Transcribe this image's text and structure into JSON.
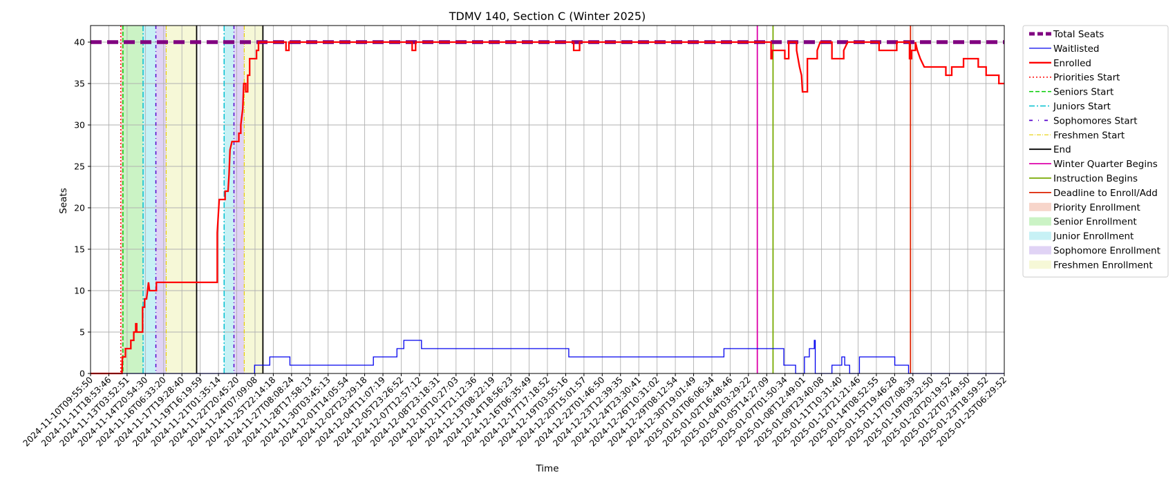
{
  "chart_data": {
    "type": "line",
    "title": "TDMV 140, Section C (Winter 2025)",
    "xlabel": "Time",
    "ylabel": "Seats",
    "x_start": "2024-11-10T09:55:50",
    "x_end": "2025-01-26T23:00:00",
    "ylim": [
      0,
      42
    ],
    "yticks": [
      0,
      5,
      10,
      15,
      20,
      25,
      30,
      35,
      40
    ],
    "grid": true,
    "legend_placement": "outside-right-top",
    "x_tick_labels": [
      "2024-11-10T09:55:50",
      "2024-11-11T18:53:46",
      "2024-11-13T03:52:51",
      "2024-11-14T20:54:30",
      "2024-11-16T06:33:20",
      "2024-11-17T19:28:40",
      "2024-11-19T16:19:59",
      "2024-11-21T01:35:14",
      "2024-11-22T20:45:20",
      "2024-11-24T07:09:08",
      "2024-11-25T22:14:18",
      "2024-11-27T08:08:24",
      "2024-11-28T17:58:13",
      "2024-11-30T03:45:13",
      "2024-12-01T14:05:54",
      "2024-12-02T23:29:18",
      "2024-12-04T11:07:19",
      "2024-12-05T23:26:52",
      "2024-12-07T12:57:12",
      "2024-12-08T23:18:31",
      "2024-12-10T10:27:03",
      "2024-12-11T21:12:36",
      "2024-12-13T08:22:19",
      "2024-12-14T18:56:23",
      "2024-12-16T06:35:49",
      "2024-12-17T17:18:52",
      "2024-12-19T03:55:16",
      "2024-12-20T15:01:57",
      "2024-12-22T01:46:50",
      "2024-12-23T12:39:35",
      "2024-12-24T23:30:41",
      "2024-12-26T10:31:02",
      "2024-12-29T08:12:54",
      "2024-12-30T19:01:49",
      "2025-01-01T06:06:34",
      "2025-01-02T16:48:46",
      "2025-01-04T03:29:22",
      "2025-01-05T14:27:09",
      "2025-01-07T01:50:34",
      "2025-01-08T12:49:01",
      "2025-01-09T23:40:08",
      "2025-01-11T10:31:40",
      "2025-01-12T21:21:46",
      "2025-01-14T08:52:55",
      "2025-01-15T19:46:28",
      "2025-01-17T07:08:39",
      "2025-01-19T09:32:50",
      "2025-01-20T20:19:52",
      "2025-01-22T07:49:50",
      "2025-01-23T18:59:52",
      "2025-01-25T06:29:52"
    ],
    "shaded_regions": [
      {
        "name": "Priority Enrollment",
        "color": "#f4c7b8",
        "start": "2024-11-12T23:30:00",
        "end": "2024-11-13T03:52:51"
      },
      {
        "name": "Senior Enrollment",
        "color": "#b9efb2",
        "start": "2024-11-13T03:52:51",
        "end": "2024-11-14T20:54:30"
      },
      {
        "name": "Junior Enrollment",
        "color": "#b4ecf2",
        "start": "2024-11-14T20:54:30",
        "end": "2024-11-15T23:00:00"
      },
      {
        "name": "Sophomore Enrollment",
        "color": "#d5c4f2",
        "start": "2024-11-15T23:00:00",
        "end": "2024-11-16T20:00:00"
      },
      {
        "name": "Freshmen Enrollment",
        "color": "#f3f5c9",
        "start": "2024-11-16T20:00:00",
        "end": "2024-11-19T10:00:00"
      },
      {
        "name": "Junior Enrollment",
        "color": "#b4ecf2",
        "start": "2024-11-21T18:00:00",
        "end": "2024-11-22T14:00:00"
      },
      {
        "name": "Sophomore Enrollment",
        "color": "#d5c4f2",
        "start": "2024-11-22T14:00:00",
        "end": "2024-11-23T11:00:00"
      },
      {
        "name": "Freshmen Enrollment",
        "color": "#f3f5c9",
        "start": "2024-11-23T11:00:00",
        "end": "2024-11-25T01:00:00"
      }
    ],
    "vertical_lines": [
      {
        "name": "Priorities Start",
        "color": "#ff0000",
        "dash": "2,3",
        "width": 1.5,
        "x": "2024-11-12T23:30:00"
      },
      {
        "name": "Seniors Start",
        "color": "#00cc00",
        "dash": "6,3",
        "width": 1.5,
        "x": "2024-11-13T03:52:51"
      },
      {
        "name": "Juniors Start",
        "color": "#00bfd0",
        "dash": "8,3,2,3",
        "width": 1.5,
        "x": "2024-11-14T20:54:30"
      },
      {
        "name": "Juniors Start",
        "color": "#00bfd0",
        "dash": "8,3,2,3",
        "width": 1.5,
        "x": "2024-11-21T18:00:00"
      },
      {
        "name": "Sophomores Start",
        "color": "#5500cc",
        "dash": "5,4,1,4",
        "width": 1.5,
        "x": "2024-11-15T23:00:00"
      },
      {
        "name": "Sophomores Start",
        "color": "#5500cc",
        "dash": "5,4,1,4",
        "width": 1.5,
        "x": "2024-11-22T14:00:00"
      },
      {
        "name": "Freshmen Start",
        "color": "#e8d000",
        "dash": "6,2,1,2",
        "width": 1.2,
        "x": "2024-11-16T20:00:00"
      },
      {
        "name": "Freshmen Start",
        "color": "#e8d000",
        "dash": "6,2,1,2",
        "width": 1.2,
        "x": "2024-11-23T11:00:00"
      },
      {
        "name": "End",
        "color": "#000000",
        "dash": "",
        "width": 1.8,
        "x": "2024-11-19T10:00:00"
      },
      {
        "name": "End",
        "color": "#000000",
        "dash": "",
        "width": 1.8,
        "x": "2024-11-25T01:00:00"
      },
      {
        "name": "Winter Quarter Begins",
        "color": "#dd00aa",
        "dash": "",
        "width": 1.8,
        "x": "2025-01-06T00:00:00"
      },
      {
        "name": "Instruction Begins",
        "color": "#77aa00",
        "dash": "",
        "width": 1.8,
        "x": "2025-01-07T08:00:00"
      },
      {
        "name": "Deadline to Enroll/Add",
        "color": "#dd2200",
        "dash": "",
        "width": 1.8,
        "x": "2025-01-19T00:00:00"
      }
    ],
    "series": [
      {
        "name": "Total Seats",
        "color": "#800080",
        "dash": "16,8",
        "width": 5.5,
        "points": [
          [
            "2024-11-10T09:55:50",
            40
          ],
          [
            "2025-01-26T23:00:00",
            40
          ]
        ]
      },
      {
        "name": "Waitlisted",
        "color": "#0000ee",
        "dash": "",
        "width": 1.3,
        "points": [
          [
            "2024-11-10T09:55:50",
            0
          ],
          [
            "2024-11-24T08:00:00",
            0
          ],
          [
            "2024-11-24T08:00:00",
            1
          ],
          [
            "2024-11-25T15:00:00",
            1
          ],
          [
            "2024-11-25T15:00:00",
            2
          ],
          [
            "2024-11-27T08:00:00",
            2
          ],
          [
            "2024-11-27T08:00:00",
            1
          ],
          [
            "2024-12-04T10:00:00",
            1
          ],
          [
            "2024-12-04T10:00:00",
            2
          ],
          [
            "2024-12-06T10:00:00",
            2
          ],
          [
            "2024-12-06T10:00:00",
            3
          ],
          [
            "2024-12-07T00:00:00",
            3
          ],
          [
            "2024-12-07T00:00:00",
            4
          ],
          [
            "2024-12-08T12:00:00",
            4
          ],
          [
            "2024-12-08T12:00:00",
            3
          ],
          [
            "2024-12-21T00:00:00",
            3
          ],
          [
            "2024-12-21T00:00:00",
            2
          ],
          [
            "2025-01-03T04:00:00",
            2
          ],
          [
            "2025-01-03T04:00:00",
            3
          ],
          [
            "2025-01-08T06:00:00",
            3
          ],
          [
            "2025-01-08T06:00:00",
            1
          ],
          [
            "2025-01-09T06:00:00",
            1
          ],
          [
            "2025-01-09T06:00:00",
            0
          ],
          [
            "2025-01-10T00:00:00",
            0
          ],
          [
            "2025-01-10T00:00:00",
            2
          ],
          [
            "2025-01-10T10:00:00",
            2
          ],
          [
            "2025-01-10T10:00:00",
            3
          ],
          [
            "2025-01-10T20:00:00",
            3
          ],
          [
            "2025-01-10T20:00:00",
            4
          ],
          [
            "2025-01-10T22:00:00",
            4
          ],
          [
            "2025-01-10T22:00:00",
            0
          ],
          [
            "2025-01-12T08:00:00",
            0
          ],
          [
            "2025-01-12T08:00:00",
            1
          ],
          [
            "2025-01-13T04:00:00",
            1
          ],
          [
            "2025-01-13T04:00:00",
            2
          ],
          [
            "2025-01-13T10:00:00",
            2
          ],
          [
            "2025-01-13T10:00:00",
            1
          ],
          [
            "2025-01-13T20:00:00",
            1
          ],
          [
            "2025-01-13T20:00:00",
            0
          ],
          [
            "2025-01-14T16:00:00",
            0
          ],
          [
            "2025-01-14T16:00:00",
            2
          ],
          [
            "2025-01-17T16:00:00",
            2
          ],
          [
            "2025-01-17T16:00:00",
            1
          ],
          [
            "2025-01-18T20:00:00",
            1
          ],
          [
            "2025-01-18T20:00:00",
            0
          ],
          [
            "2025-01-26T23:00:00",
            0
          ]
        ]
      },
      {
        "name": "Enrolled",
        "color": "#ff0000",
        "dash": "",
        "width": 2.3,
        "points": [
          [
            "2024-11-10T09:55:50",
            0
          ],
          [
            "2024-11-13T02:00:00",
            0
          ],
          [
            "2024-11-13T03:00:00",
            2
          ],
          [
            "2024-11-13T09:00:00",
            2
          ],
          [
            "2024-11-13T09:00:00",
            3
          ],
          [
            "2024-11-13T20:00:00",
            3
          ],
          [
            "2024-11-13T20:00:00",
            4
          ],
          [
            "2024-11-14T02:00:00",
            4
          ],
          [
            "2024-11-14T02:00:00",
            5
          ],
          [
            "2024-11-14T06:00:00",
            5
          ],
          [
            "2024-11-14T06:00:00",
            6
          ],
          [
            "2024-11-14T08:00:00",
            6
          ],
          [
            "2024-11-14T08:00:00",
            5
          ],
          [
            "2024-11-14T20:00:00",
            5
          ],
          [
            "2024-11-14T20:00:00",
            8
          ],
          [
            "2024-11-15T00:00:00",
            8
          ],
          [
            "2024-11-15T00:00:00",
            9
          ],
          [
            "2024-11-15T04:00:00",
            9
          ],
          [
            "2024-11-15T06:00:00",
            10
          ],
          [
            "2024-11-15T08:00:00",
            11
          ],
          [
            "2024-11-15T10:00:00",
            10
          ],
          [
            "2024-11-16T00:00:00",
            10
          ],
          [
            "2024-11-16T00:00:00",
            11
          ],
          [
            "2024-11-21T04:00:00",
            11
          ],
          [
            "2024-11-21T04:00:00",
            17
          ],
          [
            "2024-11-21T06:00:00",
            19
          ],
          [
            "2024-11-21T08:00:00",
            21
          ],
          [
            "2024-11-21T20:00:00",
            21
          ],
          [
            "2024-11-21T20:00:00",
            22
          ],
          [
            "2024-11-22T02:00:00",
            22
          ],
          [
            "2024-11-22T04:00:00",
            24
          ],
          [
            "2024-11-22T06:00:00",
            27
          ],
          [
            "2024-11-22T10:00:00",
            28
          ],
          [
            "2024-11-23T00:00:00",
            28
          ],
          [
            "2024-11-23T00:00:00",
            29
          ],
          [
            "2024-11-23T04:00:00",
            29
          ],
          [
            "2024-11-23T04:00:00",
            30
          ],
          [
            "2024-11-23T08:00:00",
            32
          ],
          [
            "2024-11-23T10:00:00",
            35
          ],
          [
            "2024-11-23T14:00:00",
            35
          ],
          [
            "2024-11-23T14:00:00",
            34
          ],
          [
            "2024-11-23T18:00:00",
            34
          ],
          [
            "2024-11-23T18:00:00",
            36
          ],
          [
            "2024-11-23T22:00:00",
            36
          ],
          [
            "2024-11-23T22:00:00",
            38
          ],
          [
            "2024-11-24T12:00:00",
            38
          ],
          [
            "2024-11-24T12:00:00",
            39
          ],
          [
            "2024-11-24T16:00:00",
            39
          ],
          [
            "2024-11-24T16:00:00",
            40
          ],
          [
            "2024-11-27T00:00:00",
            40
          ],
          [
            "2024-11-27T00:00:00",
            39
          ],
          [
            "2024-11-27T06:00:00",
            39
          ],
          [
            "2024-11-27T06:00:00",
            40
          ],
          [
            "2024-12-07T17:00:00",
            40
          ],
          [
            "2024-12-07T17:00:00",
            39
          ],
          [
            "2024-12-08T00:00:00",
            39
          ],
          [
            "2024-12-08T00:00:00",
            40
          ],
          [
            "2024-12-21T10:00:00",
            40
          ],
          [
            "2024-12-21T10:00:00",
            39
          ],
          [
            "2024-12-21T22:00:00",
            39
          ],
          [
            "2024-12-21T22:00:00",
            40
          ],
          [
            "2025-01-07T04:00:00",
            40
          ],
          [
            "2025-01-07T04:00:00",
            38
          ],
          [
            "2025-01-07T06:00:00",
            38
          ],
          [
            "2025-01-07T06:00:00",
            39
          ],
          [
            "2025-01-08T08:00:00",
            39
          ],
          [
            "2025-01-08T08:00:00",
            38
          ],
          [
            "2025-01-08T16:00:00",
            38
          ],
          [
            "2025-01-08T16:00:00",
            40
          ],
          [
            "2025-01-09T08:00:00",
            40
          ],
          [
            "2025-01-09T08:00:00",
            39
          ],
          [
            "2025-01-09T14:00:00",
            37
          ],
          [
            "2025-01-09T18:00:00",
            36
          ],
          [
            "2025-01-09T20:00:00",
            34
          ],
          [
            "2025-01-10T06:00:00",
            34
          ],
          [
            "2025-01-10T06:00:00",
            38
          ],
          [
            "2025-01-11T02:00:00",
            38
          ],
          [
            "2025-01-11T02:00:00",
            39
          ],
          [
            "2025-01-11T08:00:00",
            40
          ],
          [
            "2025-01-12T08:00:00",
            40
          ],
          [
            "2025-01-12T08:00:00",
            38
          ],
          [
            "2025-01-13T08:00:00",
            38
          ],
          [
            "2025-01-13T08:00:00",
            39
          ],
          [
            "2025-01-13T16:00:00",
            40
          ],
          [
            "2025-01-16T08:00:00",
            40
          ],
          [
            "2025-01-16T08:00:00",
            39
          ],
          [
            "2025-01-17T20:00:00",
            39
          ],
          [
            "2025-01-17T20:00:00",
            40
          ],
          [
            "2025-01-18T22:00:00",
            40
          ],
          [
            "2025-01-18T22:00:00",
            38
          ],
          [
            "2025-01-19T02:00:00",
            38
          ],
          [
            "2025-01-19T02:00:00",
            39
          ],
          [
            "2025-01-19T10:00:00",
            39
          ],
          [
            "2025-01-19T10:00:00",
            40
          ],
          [
            "2025-01-19T14:00:00",
            39
          ],
          [
            "2025-01-19T20:00:00",
            38
          ],
          [
            "2025-01-20T04:00:00",
            37
          ],
          [
            "2025-01-22T00:00:00",
            37
          ],
          [
            "2025-01-22T00:00:00",
            36
          ],
          [
            "2025-01-22T12:00:00",
            36
          ],
          [
            "2025-01-22T12:00:00",
            37
          ],
          [
            "2025-01-23T12:00:00",
            37
          ],
          [
            "2025-01-23T12:00:00",
            38
          ],
          [
            "2025-01-24T18:00:00",
            38
          ],
          [
            "2025-01-24T18:00:00",
            37
          ],
          [
            "2025-01-25T10:00:00",
            37
          ],
          [
            "2025-01-25T10:00:00",
            36
          ],
          [
            "2025-01-26T12:00:00",
            36
          ],
          [
            "2025-01-26T12:00:00",
            35
          ],
          [
            "2025-01-26T23:00:00",
            35
          ]
        ]
      }
    ],
    "legend": [
      {
        "label": "Total Seats",
        "kind": "line",
        "color": "#800080",
        "dash": "8,4",
        "width": 5
      },
      {
        "label": "Waitlisted",
        "kind": "line",
        "color": "#0000ee",
        "dash": "",
        "width": 1.3
      },
      {
        "label": "Enrolled",
        "kind": "line",
        "color": "#ff0000",
        "dash": "",
        "width": 2.3
      },
      {
        "label": "Priorities Start",
        "kind": "line",
        "color": "#ff0000",
        "dash": "2,3",
        "width": 1.5
      },
      {
        "label": "Seniors Start",
        "kind": "line",
        "color": "#00cc00",
        "dash": "6,3",
        "width": 1.5
      },
      {
        "label": "Juniors Start",
        "kind": "line",
        "color": "#00bfd0",
        "dash": "8,3,2,3",
        "width": 1.5
      },
      {
        "label": "Sophomores Start",
        "kind": "line",
        "color": "#5500cc",
        "dash": "5,8,1,8",
        "width": 1.8
      },
      {
        "label": "Freshmen Start",
        "kind": "line",
        "color": "#e8d000",
        "dash": "6,2,1,2",
        "width": 1.2
      },
      {
        "label": "End",
        "kind": "line",
        "color": "#000000",
        "dash": "",
        "width": 1.8
      },
      {
        "label": "Winter Quarter Begins",
        "kind": "line",
        "color": "#dd00aa",
        "dash": "",
        "width": 1.8
      },
      {
        "label": "Instruction Begins",
        "kind": "line",
        "color": "#77aa00",
        "dash": "",
        "width": 1.8
      },
      {
        "label": "Deadline to Enroll/Add",
        "kind": "line",
        "color": "#dd2200",
        "dash": "",
        "width": 1.8
      },
      {
        "label": "Priority Enrollment",
        "kind": "patch",
        "color": "#f4c7b8"
      },
      {
        "label": "Senior Enrollment",
        "kind": "patch",
        "color": "#b9efb2"
      },
      {
        "label": "Junior Enrollment",
        "kind": "patch",
        "color": "#b4ecf2"
      },
      {
        "label": "Sophomore Enrollment",
        "kind": "patch",
        "color": "#d5c4f2"
      },
      {
        "label": "Freshmen Enrollment",
        "kind": "patch",
        "color": "#f3f5c9"
      }
    ]
  }
}
